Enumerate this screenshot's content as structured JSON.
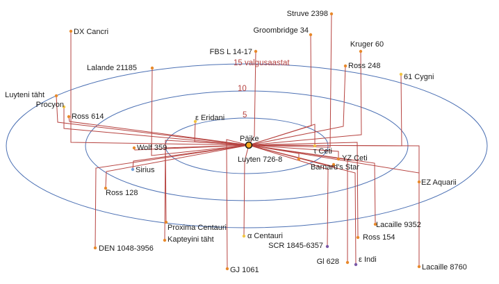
{
  "sun": {
    "name": "Päike",
    "color": "#f6a81c",
    "ring_color": "#1a1a1a"
  },
  "distance_labels": [
    "5",
    "10",
    "15 valgusaastat"
  ],
  "colors": {
    "ring": "#4a6fb3",
    "line": "#b6423f",
    "label_red": "#b6423f",
    "star_orange": "#e8892b",
    "star_yellow": "#f2c544",
    "star_blue": "#6f9fd8",
    "star_purple": "#7a57a6"
  },
  "stars": [
    {
      "name": "Struve 2398",
      "color": "#e8892b"
    },
    {
      "name": "DX Cancri",
      "color": "#e8892b"
    },
    {
      "name": "Groombridge 34",
      "color": "#e8892b"
    },
    {
      "name": "FBS L 14-17",
      "color": "#e8892b"
    },
    {
      "name": "Kruger 60",
      "color": "#e8892b"
    },
    {
      "name": "Lalande 21185",
      "color": "#e8892b"
    },
    {
      "name": "Ross 248",
      "color": "#e8892b"
    },
    {
      "name": "61 Cygni",
      "color": "#f2c544"
    },
    {
      "name": "Luyteni täht",
      "color": "#e8892b"
    },
    {
      "name": "Procyon",
      "color": "#f2c544"
    },
    {
      "name": "Ross 614",
      "color": "#e8892b"
    },
    {
      "name": "ε Eridani",
      "color": "#f2c544"
    },
    {
      "name": "Wolf 359",
      "color": "#e8892b"
    },
    {
      "name": "Sirius",
      "color": "#6f9fd8"
    },
    {
      "name": "Luyten 726-8",
      "color": "#e8892b"
    },
    {
      "name": "τ Ceti",
      "color": "#f2c544"
    },
    {
      "name": "YZ Ceti",
      "color": "#e8892b"
    },
    {
      "name": "Barnard's Star",
      "color": "#e8892b"
    },
    {
      "name": "Ross 128",
      "color": "#e8892b"
    },
    {
      "name": "EZ Aquarii",
      "color": "#e8892b"
    },
    {
      "name": "Proxima Centauri",
      "color": "#e8892b"
    },
    {
      "name": "Kapteyini täht",
      "color": "#e8892b"
    },
    {
      "name": "Lacaille 9352",
      "color": "#e8892b"
    },
    {
      "name": "α Centauri",
      "color": "#f2c544"
    },
    {
      "name": "DEN 1048-3956",
      "color": "#e8892b"
    },
    {
      "name": "Ross 154",
      "color": "#e8892b"
    },
    {
      "name": "SCR 1845-6357",
      "color": "#7a57a6"
    },
    {
      "name": "Gl 628",
      "color": "#e8892b"
    },
    {
      "name": "ε Indi",
      "color": "#7a57a6"
    },
    {
      "name": "Lacaille 8760",
      "color": "#e8892b"
    },
    {
      "name": "GJ 1061",
      "color": "#e8892b"
    }
  ]
}
